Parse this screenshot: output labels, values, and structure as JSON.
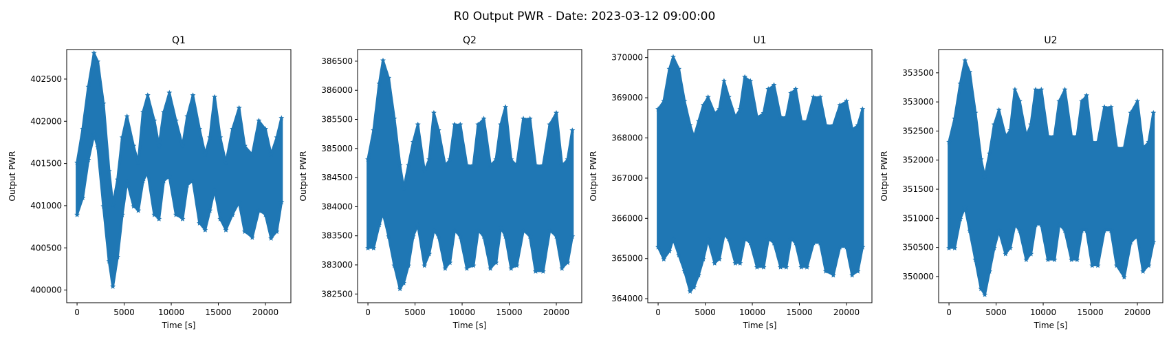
{
  "figure": {
    "title": "R0 Output PWR - Date: 2023-03-12 09:00:00",
    "series_color": "#1f77b4"
  },
  "chart_data": [
    {
      "type": "scatter",
      "marker": "star",
      "title": "Q1",
      "xlabel": "Time [s]",
      "ylabel": "Output PWR",
      "xlim": [
        -1100,
        22700
      ],
      "ylim": [
        399850,
        402850
      ],
      "xticks": [
        0,
        5000,
        10000,
        15000,
        20000
      ],
      "yticks": [
        400000,
        400500,
        401000,
        401500,
        402000,
        402500
      ],
      "ytick_labels": [
        "400000",
        "400500",
        "401000",
        "401500",
        "402000",
        "402500"
      ],
      "envelope": {
        "x": [
          0,
          600,
          1200,
          1800,
          2200,
          2800,
          3400,
          3800,
          4300,
          4800,
          5300,
          6000,
          6500,
          7000,
          7500,
          8200,
          8700,
          9200,
          9800,
          10500,
          11200,
          11700,
          12300,
          13000,
          13600,
          14100,
          14600,
          15200,
          15800,
          16500,
          17200,
          17800,
          18600,
          19300,
          20000,
          20600,
          21200,
          21700
        ],
        "upper": [
          401500,
          401900,
          402400,
          402800,
          402700,
          402200,
          401400,
          401000,
          401300,
          401800,
          402050,
          401700,
          401500,
          402100,
          402300,
          402000,
          401700,
          402100,
          402330,
          402000,
          401700,
          402050,
          402300,
          401900,
          401600,
          401800,
          402280,
          401800,
          401500,
          401900,
          402150,
          401700,
          401600,
          402000,
          401900,
          401600,
          401800,
          402030
        ],
        "lower": [
          400900,
          401100,
          401550,
          401850,
          401700,
          401000,
          400350,
          400050,
          400400,
          400900,
          401300,
          401000,
          400950,
          401300,
          401400,
          400900,
          400850,
          401300,
          401350,
          400900,
          400850,
          401250,
          401300,
          400800,
          400720,
          400950,
          401200,
          400850,
          400720,
          400900,
          401050,
          400700,
          400630,
          400950,
          400900,
          400620,
          400700,
          401050
        ]
      }
    },
    {
      "type": "scatter",
      "marker": "star",
      "title": "Q2",
      "xlabel": "Time [s]",
      "ylabel": "Output PWR",
      "xlim": [
        -1100,
        22700
      ],
      "ylim": [
        382350,
        386700
      ],
      "xticks": [
        0,
        5000,
        10000,
        15000,
        20000
      ],
      "yticks": [
        382500,
        383000,
        383500,
        384000,
        384500,
        385000,
        385500,
        386000,
        386500
      ],
      "ytick_labels": [
        "382500",
        "383000",
        "383500",
        "384000",
        "384500",
        "385000",
        "385500",
        "386000",
        "386500"
      ],
      "envelope": {
        "x": [
          0,
          600,
          1200,
          1600,
          2200,
          2800,
          3400,
          3800,
          4300,
          4800,
          5300,
          6000,
          6500,
          7000,
          7500,
          8200,
          8700,
          9200,
          9800,
          10500,
          11200,
          11700,
          12300,
          13000,
          13600,
          14100,
          14600,
          15200,
          15800,
          16500,
          17200,
          17800,
          18600,
          19300,
          20000,
          20600,
          21200,
          21700
        ],
        "upper": [
          384800,
          385300,
          386100,
          386500,
          386200,
          385500,
          384700,
          384300,
          384700,
          385100,
          385400,
          384600,
          384800,
          385600,
          385300,
          384700,
          384800,
          385400,
          385400,
          384700,
          384700,
          385400,
          385500,
          384700,
          384800,
          385400,
          385700,
          384800,
          384700,
          385500,
          385500,
          384700,
          384700,
          385400,
          385600,
          384700,
          384800,
          385300
        ],
        "lower": [
          383300,
          383300,
          383700,
          383900,
          383500,
          383000,
          382600,
          382700,
          383000,
          383500,
          383700,
          383000,
          383200,
          383600,
          383500,
          382950,
          383050,
          383600,
          383500,
          382950,
          383000,
          383600,
          383500,
          382950,
          383050,
          383650,
          383500,
          382950,
          383000,
          383600,
          383500,
          382900,
          382900,
          383600,
          383500,
          382950,
          383050,
          383500
        ]
      }
    },
    {
      "type": "scatter",
      "marker": "star",
      "title": "U1",
      "xlabel": "Time [s]",
      "ylabel": "Output PWR",
      "xlim": [
        -1100,
        22700
      ],
      "ylim": [
        363900,
        370200
      ],
      "xticks": [
        0,
        5000,
        10000,
        15000,
        20000
      ],
      "yticks": [
        364000,
        365000,
        366000,
        367000,
        368000,
        369000,
        370000
      ],
      "ytick_labels": [
        "364000",
        "365000",
        "366000",
        "367000",
        "368000",
        "369000",
        "370000"
      ],
      "envelope": {
        "x": [
          0,
          600,
          1200,
          1600,
          2200,
          2800,
          3400,
          3800,
          4300,
          4800,
          5300,
          6000,
          6500,
          7000,
          7500,
          8200,
          8700,
          9200,
          9800,
          10500,
          11200,
          11700,
          12300,
          13000,
          13600,
          14100,
          14600,
          15200,
          15800,
          16500,
          17200,
          17800,
          18600,
          19300,
          20000,
          20600,
          21200,
          21700
        ],
        "upper": [
          368700,
          368900,
          369700,
          370000,
          369700,
          368900,
          368300,
          368000,
          368400,
          368800,
          369000,
          368600,
          368700,
          369400,
          369000,
          368500,
          368700,
          369500,
          369400,
          368500,
          368600,
          369200,
          369300,
          368500,
          368500,
          369100,
          369200,
          368400,
          368400,
          369000,
          369000,
          368300,
          368300,
          368800,
          368900,
          368200,
          368300,
          368700
        ],
        "lower": [
          365300,
          365000,
          365200,
          365500,
          365100,
          364700,
          364200,
          364300,
          364600,
          365000,
          365500,
          364900,
          365000,
          365600,
          365500,
          364900,
          364900,
          365500,
          365400,
          364800,
          364800,
          365500,
          365400,
          364800,
          364800,
          365500,
          365400,
          364800,
          364800,
          365400,
          365400,
          364700,
          364600,
          365300,
          365300,
          364600,
          364700,
          365300
        ]
      }
    },
    {
      "type": "scatter",
      "marker": "star",
      "title": "U2",
      "xlabel": "Time [s]",
      "ylabel": "Output PWR",
      "xlim": [
        -1100,
        22700
      ],
      "ylim": [
        349550,
        353900
      ],
      "xticks": [
        0,
        5000,
        10000,
        15000,
        20000
      ],
      "yticks": [
        350000,
        350500,
        351000,
        351500,
        352000,
        352500,
        353000,
        353500
      ],
      "ytick_labels": [
        "350000",
        "350500",
        "351000",
        "351500",
        "352000",
        "352500",
        "353000",
        "353500"
      ],
      "envelope": {
        "x": [
          0,
          600,
          1200,
          1700,
          2200,
          2800,
          3400,
          3800,
          4300,
          4800,
          5300,
          6000,
          6500,
          7000,
          7500,
          8200,
          8700,
          9200,
          9800,
          10500,
          11200,
          11700,
          12300,
          13000,
          13600,
          14100,
          14600,
          15200,
          15800,
          16500,
          17200,
          17800,
          18600,
          19300,
          20000,
          20600,
          21200,
          21700
        ],
        "upper": [
          352300,
          352700,
          353300,
          353700,
          353500,
          352800,
          352000,
          351700,
          352100,
          352600,
          352850,
          352400,
          352500,
          353200,
          353000,
          352400,
          352600,
          353200,
          353200,
          352400,
          352400,
          353000,
          353200,
          352400,
          352400,
          353000,
          353100,
          352300,
          352300,
          352900,
          352900,
          352200,
          352200,
          352800,
          353000,
          352200,
          352300,
          352800
        ],
        "lower": [
          350500,
          350500,
          351000,
          351200,
          350800,
          350300,
          349800,
          349700,
          350100,
          350500,
          350800,
          350400,
          350500,
          350900,
          350800,
          350300,
          350400,
          350900,
          350900,
          350300,
          350300,
          350900,
          350800,
          350300,
          350300,
          350800,
          350800,
          350200,
          350200,
          350800,
          350800,
          350200,
          350000,
          350600,
          350700,
          350100,
          350200,
          350600
        ]
      }
    }
  ]
}
